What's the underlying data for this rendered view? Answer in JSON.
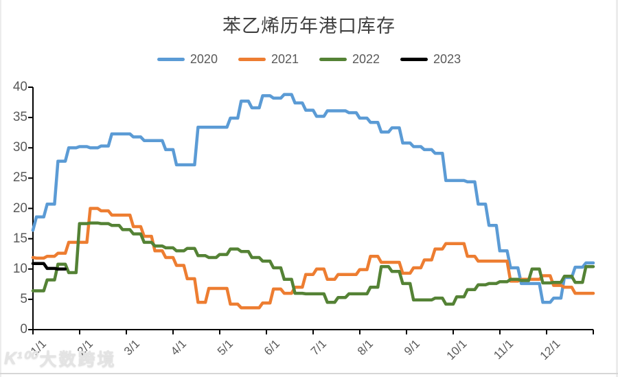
{
  "watermark": {
    "logo_text": "K¹⁰⁰",
    "text": "大数跨境"
  },
  "chart_data": {
    "type": "line",
    "title": "苯乙烯历年港口库存",
    "xlabel": "",
    "ylabel": "",
    "x_tick_labels": [
      "1/1",
      "2/1",
      "3/1",
      "4/1",
      "5/1",
      "6/1",
      "7/1",
      "8/1",
      "9/1",
      "10/1",
      "11/1",
      "12/1"
    ],
    "y_ticks": [
      0,
      5,
      10,
      15,
      20,
      25,
      30,
      35,
      40
    ],
    "ylim": [
      0,
      40
    ],
    "x_unit": "weeks from Jan 1",
    "grid": false,
    "legend_position": "top",
    "axis_color": "#000000",
    "tick_label_color": "#595959",
    "series": [
      {
        "name": "2020",
        "color": "#5B9BD5",
        "values": [
          16.4,
          18.6,
          20.7,
          27.8,
          30.0,
          30.2,
          30.0,
          30.3,
          32.3,
          32.3,
          31.8,
          31.2,
          31.2,
          29.7,
          27.2,
          27.2,
          33.4,
          33.4,
          33.4,
          34.9,
          37.7,
          36.6,
          38.6,
          38.2,
          38.8,
          37.4,
          36.2,
          35.2,
          36.1,
          36.1,
          35.8,
          34.9,
          34.2,
          32.6,
          33.3,
          30.8,
          30.2,
          29.7,
          29.1,
          24.6,
          24.6,
          24.4,
          20.7,
          17.2,
          13.0,
          10.2,
          7.6,
          7.6,
          4.5,
          5.2,
          8.6,
          10.3,
          11.0
        ]
      },
      {
        "name": "2021",
        "color": "#ED7D31",
        "values": [
          11.9,
          11.8,
          12.1,
          12.6,
          14.4,
          14.4,
          20.0,
          19.6,
          18.9,
          18.9,
          17.0,
          15.4,
          13.0,
          11.9,
          10.6,
          8.4,
          4.5,
          6.8,
          6.8,
          4.2,
          3.6,
          3.6,
          4.4,
          6.7,
          6.0,
          7.0,
          9.1,
          10.0,
          8.3,
          9.1,
          9.1,
          9.9,
          12.1,
          11.1,
          11.1,
          9.3,
          10.2,
          11.5,
          13.3,
          14.2,
          14.2,
          12.1,
          11.3,
          11.3,
          11.3,
          8.0,
          8.3,
          8.3,
          8.9,
          7.3,
          7.0,
          6.0,
          6.0
        ]
      },
      {
        "name": "2022",
        "color": "#548235",
        "values": [
          6.4,
          6.4,
          8.2,
          10.8,
          9.4,
          17.5,
          17.6,
          17.5,
          17.2,
          16.5,
          15.8,
          14.4,
          13.8,
          13.5,
          13.0,
          13.4,
          12.2,
          11.9,
          12.4,
          13.3,
          12.9,
          11.9,
          11.3,
          10.2,
          8.3,
          6.0,
          5.9,
          5.9,
          4.5,
          5.3,
          5.9,
          5.9,
          7.0,
          10.4,
          9.6,
          7.6,
          4.9,
          4.9,
          5.2,
          4.2,
          5.4,
          6.6,
          7.4,
          7.6,
          7.9,
          8.3,
          8.1,
          10.0,
          7.7,
          7.8,
          8.8,
          7.8,
          10.4
        ]
      },
      {
        "name": "2023",
        "color": "#000000",
        "values": [
          10.9,
          10.9,
          10.1,
          10.0
        ]
      }
    ]
  }
}
